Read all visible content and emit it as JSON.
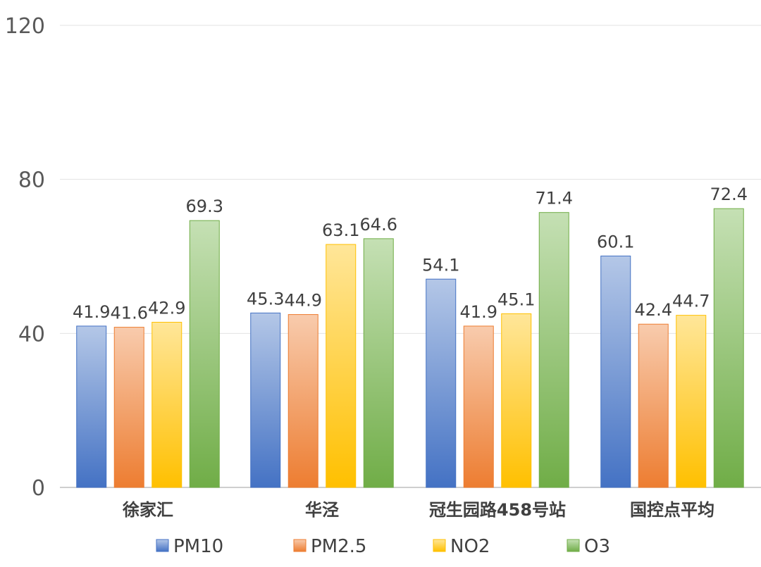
{
  "chart_data": {
    "type": "bar",
    "categories": [
      "徐家汇",
      "华泾",
      "冠生园路458号站",
      "国控点平均"
    ],
    "series": [
      {
        "name": "PM10",
        "values": [
          41.9,
          45.3,
          54.1,
          60.1
        ],
        "color_top": "#b4c7e7",
        "color_bottom": "#4472c4"
      },
      {
        "name": "PM2.5",
        "values": [
          41.6,
          44.9,
          41.9,
          42.4
        ],
        "color_top": "#f8cbad",
        "color_bottom": "#ed7d31"
      },
      {
        "name": "NO2",
        "values": [
          42.9,
          63.1,
          45.1,
          44.7
        ],
        "color_top": "#ffe699",
        "color_bottom": "#ffc000"
      },
      {
        "name": "O3",
        "values": [
          69.3,
          64.6,
          71.4,
          72.4
        ],
        "color_top": "#c5e0b4",
        "color_bottom": "#70ad47"
      }
    ],
    "yticks": [
      "0",
      "40",
      "80",
      "120"
    ],
    "ylim": [
      0,
      120
    ],
    "grid": true,
    "legend": "bottom",
    "title": "",
    "xlabel": "",
    "ylabel": ""
  }
}
